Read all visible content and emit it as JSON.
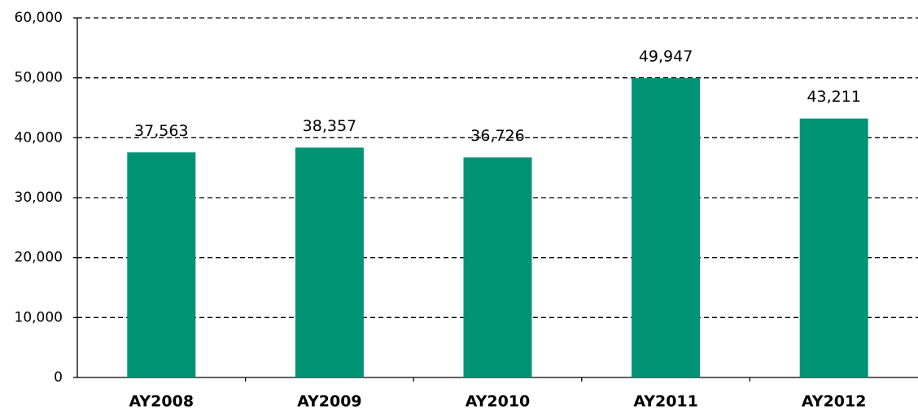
{
  "chart_data": {
    "type": "bar",
    "categories": [
      "AY2008",
      "AY2009",
      "AY2010",
      "AY2011",
      "AY2012"
    ],
    "values": [
      37563,
      38357,
      36726,
      49947,
      43211
    ],
    "value_labels": [
      "37,563",
      "38,357",
      "36,726",
      "49,947",
      "43,211"
    ],
    "color": "#009474",
    "ylim": [
      0,
      60000
    ],
    "yticks": [
      0,
      {
        "value": 10000,
        "label": "10,000"
      },
      {
        "value": 20000,
        "label": "20,000"
      },
      {
        "value": 30000,
        "label": "30,000"
      },
      {
        "value": 40000,
        "label": "40,000"
      },
      {
        "value": 50000,
        "label": "50,000"
      },
      {
        "value": 60000,
        "label": "60,000"
      }
    ],
    "grid": true
  }
}
